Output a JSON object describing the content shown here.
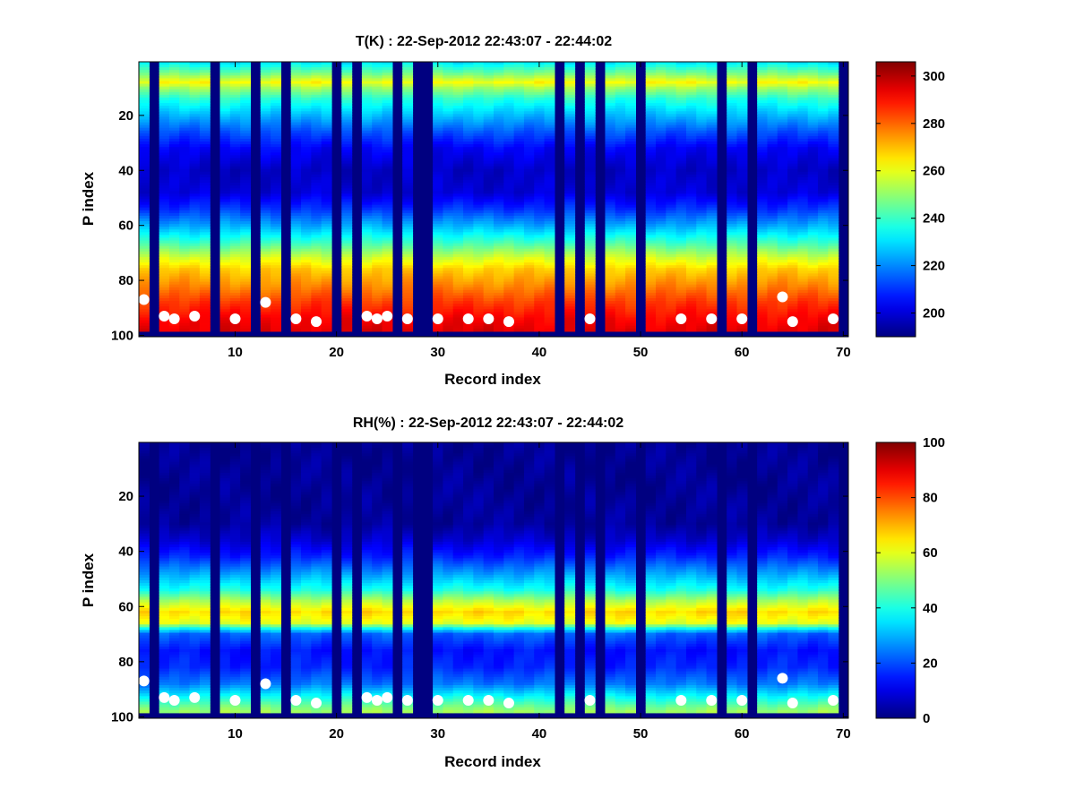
{
  "chart_data": [
    {
      "type": "heatmap",
      "title": "T(K) : 22-Sep-2012 22:43:07 - 22:44:02",
      "xlabel": "Record index",
      "ylabel": "P index",
      "xlim": [
        1,
        70
      ],
      "ylim": [
        1,
        100
      ],
      "y_reversed": true,
      "xticks": [
        10,
        20,
        30,
        40,
        50,
        60,
        70
      ],
      "yticks": [
        20,
        40,
        60,
        80,
        100
      ],
      "colorbar": {
        "colormap": "jet",
        "range": [
          190,
          306
        ],
        "ticks": [
          200,
          220,
          240,
          260,
          280,
          300
        ]
      },
      "profile_levels": [
        {
          "p": 1,
          "value": 232
        },
        {
          "p": 5,
          "value": 248
        },
        {
          "p": 8,
          "value": 262
        },
        {
          "p": 10,
          "value": 252
        },
        {
          "p": 14,
          "value": 238
        },
        {
          "p": 20,
          "value": 226
        },
        {
          "p": 26,
          "value": 214
        },
        {
          "p": 32,
          "value": 204
        },
        {
          "p": 40,
          "value": 198
        },
        {
          "p": 48,
          "value": 200
        },
        {
          "p": 54,
          "value": 210
        },
        {
          "p": 60,
          "value": 224
        },
        {
          "p": 66,
          "value": 240
        },
        {
          "p": 72,
          "value": 258
        },
        {
          "p": 76,
          "value": 268
        },
        {
          "p": 82,
          "value": 276
        },
        {
          "p": 88,
          "value": 285
        },
        {
          "p": 94,
          "value": 292
        },
        {
          "p": 100,
          "value": 296
        }
      ],
      "fill_value": 190,
      "missing_records": [
        2,
        8,
        12,
        15,
        20,
        22,
        26,
        28,
        29,
        42,
        44,
        46,
        50,
        58,
        61,
        70
      ],
      "surface_cutoff_p": 98,
      "markers": [
        {
          "record": 1,
          "p": 87
        },
        {
          "record": 3,
          "p": 93
        },
        {
          "record": 4,
          "p": 94
        },
        {
          "record": 6,
          "p": 93
        },
        {
          "record": 10,
          "p": 94
        },
        {
          "record": 13,
          "p": 88
        },
        {
          "record": 16,
          "p": 94
        },
        {
          "record": 18,
          "p": 95
        },
        {
          "record": 23,
          "p": 93
        },
        {
          "record": 24,
          "p": 94
        },
        {
          "record": 25,
          "p": 93
        },
        {
          "record": 27,
          "p": 94
        },
        {
          "record": 30,
          "p": 94
        },
        {
          "record": 33,
          "p": 94
        },
        {
          "record": 35,
          "p": 94
        },
        {
          "record": 37,
          "p": 95
        },
        {
          "record": 45,
          "p": 94
        },
        {
          "record": 54,
          "p": 94
        },
        {
          "record": 57,
          "p": 94
        },
        {
          "record": 60,
          "p": 94
        },
        {
          "record": 64,
          "p": 86
        },
        {
          "record": 65,
          "p": 95
        },
        {
          "record": 69,
          "p": 94
        }
      ]
    },
    {
      "type": "heatmap",
      "title": "RH(%) : 22-Sep-2012 22:43:07 - 22:44:02",
      "xlabel": "Record index",
      "ylabel": "P index",
      "xlim": [
        1,
        70
      ],
      "ylim": [
        1,
        100
      ],
      "y_reversed": true,
      "xticks": [
        10,
        20,
        30,
        40,
        50,
        60,
        70
      ],
      "yticks": [
        20,
        40,
        60,
        80,
        100
      ],
      "colorbar": {
        "colormap": "jet",
        "range": [
          0,
          100
        ],
        "ticks": [
          0,
          20,
          40,
          60,
          80,
          100
        ]
      },
      "profile_levels": [
        {
          "p": 1,
          "value": 2
        },
        {
          "p": 30,
          "value": 3
        },
        {
          "p": 36,
          "value": 8
        },
        {
          "p": 42,
          "value": 16
        },
        {
          "p": 48,
          "value": 28
        },
        {
          "p": 54,
          "value": 40
        },
        {
          "p": 58,
          "value": 55
        },
        {
          "p": 62,
          "value": 66
        },
        {
          "p": 66,
          "value": 60
        },
        {
          "p": 68,
          "value": 38
        },
        {
          "p": 70,
          "value": 22
        },
        {
          "p": 76,
          "value": 14
        },
        {
          "p": 82,
          "value": 16
        },
        {
          "p": 88,
          "value": 24
        },
        {
          "p": 92,
          "value": 36
        },
        {
          "p": 96,
          "value": 48
        },
        {
          "p": 100,
          "value": 58
        }
      ],
      "fill_value": 0,
      "missing_records": [
        2,
        8,
        12,
        15,
        20,
        22,
        26,
        28,
        29,
        42,
        44,
        46,
        50,
        58,
        61,
        70
      ],
      "surface_cutoff_p": 98,
      "markers": [
        {
          "record": 1,
          "p": 87
        },
        {
          "record": 3,
          "p": 93
        },
        {
          "record": 4,
          "p": 94
        },
        {
          "record": 6,
          "p": 93
        },
        {
          "record": 10,
          "p": 94
        },
        {
          "record": 13,
          "p": 88
        },
        {
          "record": 16,
          "p": 94
        },
        {
          "record": 18,
          "p": 95
        },
        {
          "record": 23,
          "p": 93
        },
        {
          "record": 24,
          "p": 94
        },
        {
          "record": 25,
          "p": 93
        },
        {
          "record": 27,
          "p": 94
        },
        {
          "record": 30,
          "p": 94
        },
        {
          "record": 33,
          "p": 94
        },
        {
          "record": 35,
          "p": 94
        },
        {
          "record": 37,
          "p": 95
        },
        {
          "record": 45,
          "p": 94
        },
        {
          "record": 54,
          "p": 94
        },
        {
          "record": 57,
          "p": 94
        },
        {
          "record": 60,
          "p": 94
        },
        {
          "record": 64,
          "p": 86
        },
        {
          "record": 65,
          "p": 95
        },
        {
          "record": 69,
          "p": 94
        }
      ]
    }
  ]
}
